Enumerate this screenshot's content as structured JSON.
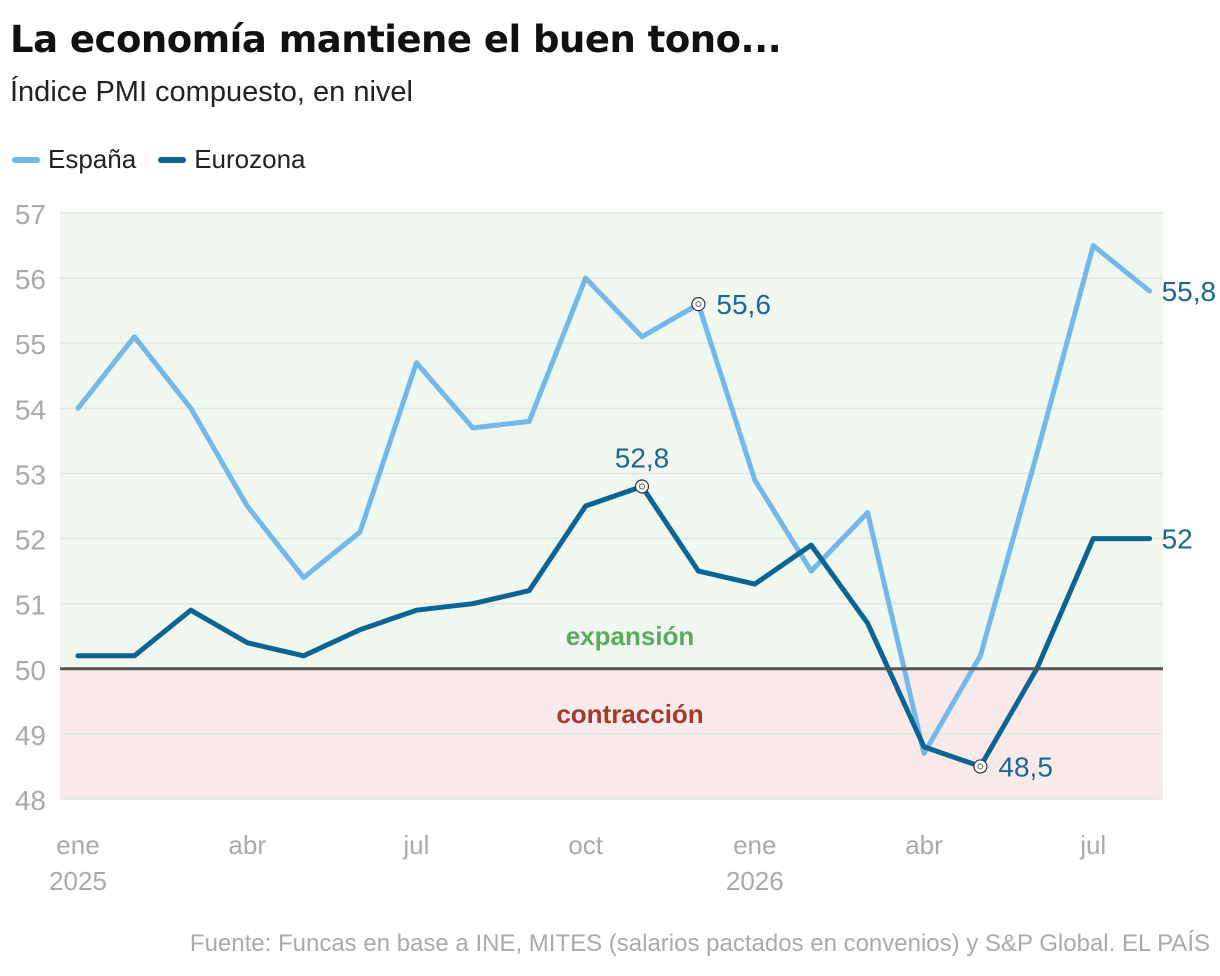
{
  "title": "La economía mantiene el buen tono...",
  "subtitle": "Índice PMI compuesto, en nivel",
  "source": "Fuente: Funcas en base a INE, MITES (salarios pactados en convenios) y S&P Global. EL PAÍS",
  "colors": {
    "espana": "#74b7ea",
    "eurozona": "#0b6494",
    "expansion_bg": "#eff7ee",
    "contraction_bg": "#f9eaea",
    "expansion_text": "#5aab5e",
    "contraction_text": "#a33a2b",
    "axis_text": "#aaaaaa",
    "label_text": "#1c6795"
  },
  "zones": {
    "expansion": "expansión",
    "contraction": "contracción"
  },
  "chart_data": {
    "type": "line",
    "x": [
      "2025-01",
      "2025-02",
      "2025-03",
      "2025-04",
      "2025-05",
      "2025-06",
      "2025-07",
      "2025-08",
      "2025-09",
      "2025-10",
      "2025-11",
      "2025-12",
      "2026-01",
      "2026-02",
      "2026-03",
      "2026-04",
      "2026-05",
      "2026-06",
      "2026-07",
      "2026-08"
    ],
    "x_ticks": [
      {
        "x": "2025-01",
        "label": "ene",
        "sublabel": "2025"
      },
      {
        "x": "2025-04",
        "label": "abr",
        "sublabel": ""
      },
      {
        "x": "2025-07",
        "label": "jul",
        "sublabel": ""
      },
      {
        "x": "2025-10",
        "label": "oct",
        "sublabel": ""
      },
      {
        "x": "2026-01",
        "label": "ene",
        "sublabel": "2026"
      },
      {
        "x": "2026-04",
        "label": "abr",
        "sublabel": ""
      },
      {
        "x": "2026-07",
        "label": "jul",
        "sublabel": ""
      }
    ],
    "y_ticks": [
      "48",
      "49",
      "50",
      "51",
      "52",
      "53",
      "54",
      "55",
      "56",
      "57"
    ],
    "ylim": [
      48,
      57
    ],
    "reference_line": 50,
    "grid": true,
    "legend_position": "top-left",
    "series": [
      {
        "name": "España",
        "color_key": "espana",
        "values": [
          54.0,
          55.1,
          54.0,
          52.5,
          51.4,
          52.1,
          54.7,
          53.7,
          53.8,
          56.0,
          55.1,
          55.6,
          52.9,
          51.5,
          52.4,
          48.7,
          50.2,
          53.3,
          56.5,
          55.8
        ]
      },
      {
        "name": "Eurozona",
        "color_key": "eurozona",
        "values": [
          50.2,
          50.2,
          50.9,
          50.4,
          50.2,
          50.6,
          50.9,
          51.0,
          51.2,
          52.5,
          52.8,
          51.5,
          51.3,
          51.9,
          50.7,
          48.8,
          48.5,
          50.0,
          52.0,
          52.0
        ]
      }
    ],
    "annotations": [
      {
        "series": 0,
        "index": 11,
        "text": "55,6",
        "marker": true,
        "pos": "right"
      },
      {
        "series": 0,
        "index": 19,
        "text": "55,8",
        "marker": false,
        "pos": "right"
      },
      {
        "series": 1,
        "index": 10,
        "text": "52,8",
        "marker": true,
        "pos": "above"
      },
      {
        "series": 1,
        "index": 16,
        "text": "48,5",
        "marker": true,
        "pos": "right"
      },
      {
        "series": 1,
        "index": 19,
        "text": "52",
        "marker": false,
        "pos": "right"
      }
    ]
  }
}
